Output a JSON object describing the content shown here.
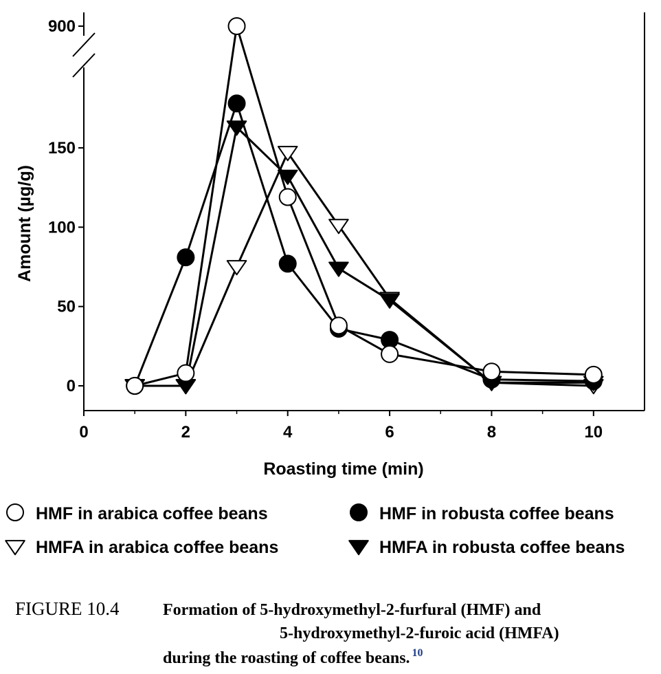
{
  "chart_data": {
    "type": "line",
    "xlabel": "Roasting time (min)",
    "ylabel": "Amount (µg/g)",
    "x_ticks": [
      0,
      2,
      4,
      6,
      8,
      10
    ],
    "y_ticks": [
      0,
      50,
      100,
      150
    ],
    "y_break_tick": 900,
    "xlim": [
      0,
      11
    ],
    "ylim": [
      -15,
      190
    ],
    "axis_break": true,
    "grid": false,
    "legend_position": "bottom",
    "series": [
      {
        "name": "HMF in arabica coffee beans",
        "marker": "circle-open",
        "x": [
          1,
          2,
          3,
          4,
          5,
          6,
          8,
          10
        ],
        "y": [
          0,
          8,
          900,
          119,
          38,
          20,
          9,
          7
        ]
      },
      {
        "name": "HMF in robusta coffee beans",
        "marker": "circle-filled",
        "x": [
          1,
          2,
          3,
          4,
          5,
          6,
          8,
          10
        ],
        "y": [
          0,
          81,
          178,
          77,
          36,
          29,
          4,
          3
        ]
      },
      {
        "name": "HMFA in arabica coffee beans",
        "marker": "triangle-down-open",
        "x": [
          1,
          2,
          3,
          4,
          5,
          6,
          8,
          10
        ],
        "y": [
          0,
          0,
          75,
          147,
          101,
          55,
          2,
          0
        ]
      },
      {
        "name": "HMFA in robusta coffee beans",
        "marker": "triangle-down-filled",
        "x": [
          1,
          2,
          3,
          4,
          5,
          6,
          8,
          10
        ],
        "y": [
          0,
          0,
          163,
          132,
          74,
          54,
          2,
          2
        ]
      }
    ]
  },
  "caption": {
    "label": "FIGURE 10.4",
    "line1": "Formation of 5-hydroxymethyl-2-furfural (HMF) and",
    "line2": "5-hydroxymethyl-2-furoic acid (HMFA)",
    "line3": "during the roasting of coffee beans.",
    "ref": "10"
  }
}
